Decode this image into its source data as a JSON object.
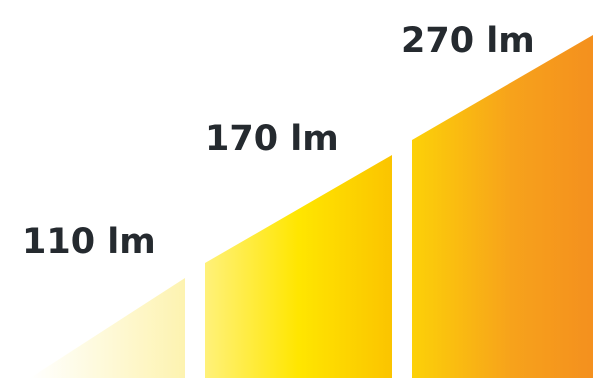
{
  "steps": [
    {
      "label": "110 lm",
      "lumens": 110
    },
    {
      "label": "170 lm",
      "lumens": 170
    },
    {
      "label": "270 lm",
      "lumens": 270
    }
  ],
  "colors": {
    "pale_yellow": "#fdf3b0",
    "yellow": "#ffe600",
    "golden": "#fbc400",
    "orange": "#f7a21b",
    "deep_orange": "#f4901e",
    "label_text": "#252a2f",
    "background": "#ffffff"
  }
}
